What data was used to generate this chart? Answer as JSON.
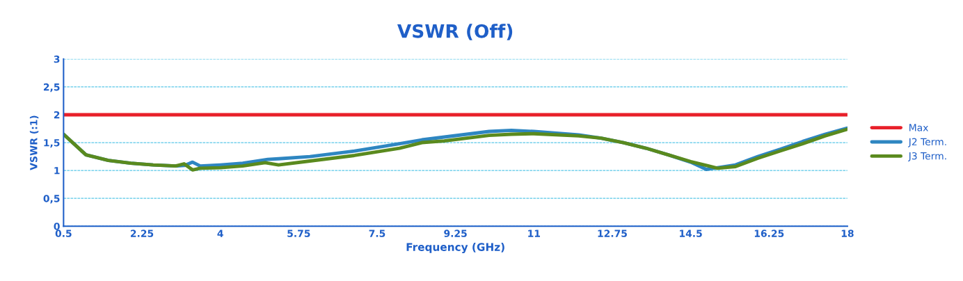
{
  "chart_data": {
    "type": "line",
    "title": "VSWR (Off)",
    "xlabel": "Frequency (GHz)",
    "ylabel": "VSWR (:1)",
    "xlim": [
      0.5,
      18
    ],
    "xticks": [
      0.5,
      2.25,
      4,
      5.75,
      7.5,
      9.25,
      11,
      12.75,
      14.5,
      16.25,
      18
    ],
    "ylim": [
      0,
      3
    ],
    "yticks": [
      0,
      {
        "value": 0.5,
        "label": "0,5"
      },
      1,
      {
        "value": 1.5,
        "label": "1,5"
      },
      2,
      {
        "value": 2.5,
        "label": "2,5"
      },
      3
    ],
    "grid": "y",
    "legend": "right",
    "line_style": "solid",
    "marker": "none",
    "series": [
      {
        "name": "Max",
        "color": "#e8202a",
        "x": [
          0.5,
          18
        ],
        "values": [
          2,
          2
        ]
      },
      {
        "name": "J2 Term.",
        "color": "#2e86c1",
        "x": [
          0.5,
          1.0,
          1.5,
          2.0,
          2.5,
          3.0,
          3.2,
          3.38,
          3.55,
          4.0,
          4.5,
          5.06,
          5.3,
          6.0,
          7.0,
          8.0,
          8.5,
          9.0,
          10.0,
          10.5,
          11.0,
          12.0,
          12.5,
          13.0,
          13.5,
          14.0,
          14.5,
          14.85,
          15.5,
          16.0,
          16.5,
          17.0,
          17.5,
          18.0
        ],
        "values": [
          1.65,
          1.28,
          1.18,
          1.13,
          1.1,
          1.08,
          1.09,
          1.15,
          1.08,
          1.1,
          1.13,
          1.2,
          1.21,
          1.25,
          1.35,
          1.48,
          1.55,
          1.6,
          1.7,
          1.72,
          1.7,
          1.64,
          1.58,
          1.5,
          1.4,
          1.28,
          1.15,
          1.02,
          1.1,
          1.25,
          1.38,
          1.52,
          1.65,
          1.76
        ]
      },
      {
        "name": "J3 Term.",
        "color": "#5a8a1e",
        "x": [
          0.5,
          1.0,
          1.5,
          2.0,
          2.5,
          3.0,
          3.19,
          3.38,
          3.55,
          4.0,
          4.5,
          5.0,
          5.3,
          6.0,
          7.0,
          8.0,
          8.5,
          9.0,
          10.0,
          10.5,
          11.0,
          12.0,
          12.5,
          13.0,
          13.5,
          14.0,
          14.5,
          15.1,
          15.5,
          16.0,
          16.5,
          17.0,
          17.5,
          18.0
        ],
        "values": [
          1.65,
          1.28,
          1.18,
          1.13,
          1.1,
          1.08,
          1.12,
          1.01,
          1.04,
          1.05,
          1.08,
          1.14,
          1.1,
          1.17,
          1.27,
          1.4,
          1.5,
          1.53,
          1.63,
          1.65,
          1.66,
          1.62,
          1.58,
          1.5,
          1.4,
          1.28,
          1.16,
          1.04,
          1.07,
          1.22,
          1.35,
          1.48,
          1.62,
          1.74
        ]
      }
    ]
  }
}
